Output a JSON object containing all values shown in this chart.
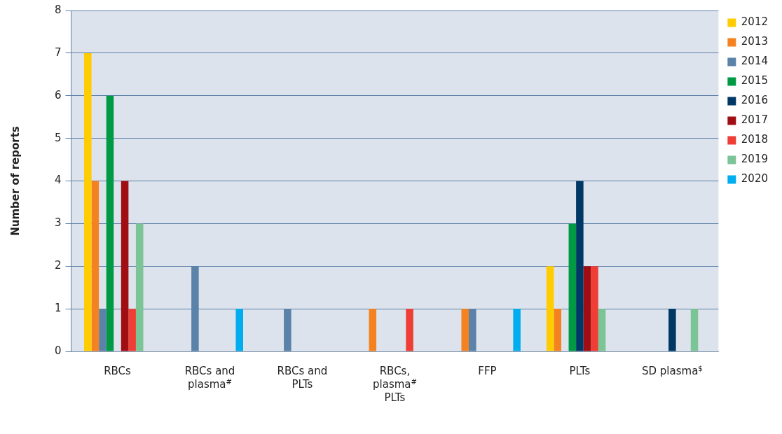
{
  "chart_data": {
    "type": "bar",
    "ylabel": "Number of reports",
    "categories": [
      "RBCs",
      "RBCs and plasma$^{#}$",
      "RBCs and PLTs",
      "RBCs, plasma$^{#}$ PLTs",
      "FFP",
      "PLTs",
      "SD plasma$^{$}$"
    ],
    "series": [
      {
        "name": "2012",
        "color": "#ffcc00",
        "values": [
          7,
          0,
          0,
          0,
          0,
          2,
          0
        ]
      },
      {
        "name": "2013",
        "color": "#f58220",
        "values": [
          4,
          0,
          0,
          1,
          1,
          1,
          0
        ]
      },
      {
        "name": "2014",
        "color": "#5b82a8",
        "values": [
          1,
          2,
          1,
          0,
          1,
          0,
          0
        ]
      },
      {
        "name": "2015",
        "color": "#009a44",
        "values": [
          6,
          0,
          0,
          0,
          0,
          3,
          0
        ]
      },
      {
        "name": "2016",
        "color": "#003865",
        "values": [
          0,
          0,
          0,
          0,
          0,
          4,
          1
        ]
      },
      {
        "name": "2017",
        "color": "#a00d12",
        "values": [
          4,
          0,
          0,
          0,
          0,
          2,
          0
        ]
      },
      {
        "name": "2018",
        "color": "#ef3e36",
        "values": [
          1,
          0,
          0,
          1,
          0,
          2,
          0
        ]
      },
      {
        "name": "2019",
        "color": "#7bc495",
        "values": [
          3,
          0,
          0,
          0,
          0,
          1,
          1
        ]
      },
      {
        "name": "2020",
        "color": "#00aeef",
        "values": [
          0,
          1,
          0,
          0,
          1,
          0,
          0
        ]
      }
    ],
    "ylim": [
      0,
      8
    ],
    "yticks": [
      0,
      1,
      2,
      3,
      4,
      5,
      6,
      7,
      8
    ],
    "grid": "y",
    "legend": "right"
  }
}
